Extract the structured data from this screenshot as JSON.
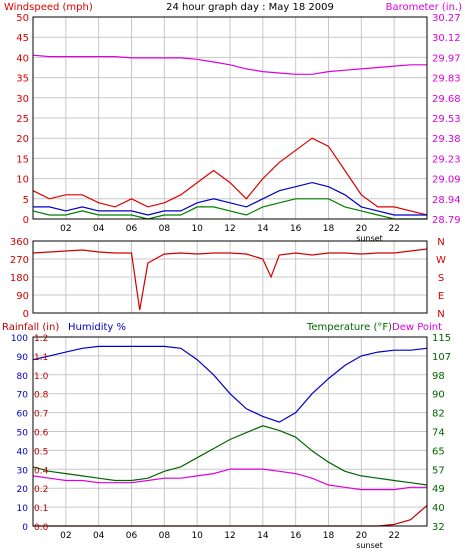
{
  "title": "24 hour graph day : May 18 2009",
  "colors": {
    "wind": "#e00000",
    "gust_avg": "#0000c8",
    "wind_green": "#008000",
    "baro": "#dd00dd",
    "dir": "#d00000",
    "rain": "#c00000",
    "hum": "#0000c8",
    "temp": "#006600",
    "dew": "#dd00dd",
    "grid": "#c8c8c8",
    "frame": "#000000"
  },
  "chart_data": [
    {
      "type": "line",
      "name": "wind-and-barometer",
      "left_axis_label": "Windspeed (mph)",
      "right_axis_label": "Barometer (in.)",
      "x_ticks": [
        "02",
        "04",
        "06",
        "08",
        "10",
        "12",
        "14",
        "16",
        "18",
        "20",
        "22"
      ],
      "x_annotation": "sunset",
      "ylim": [
        0,
        50
      ],
      "y_ticks": [
        "0",
        "5",
        "10",
        "15",
        "20",
        "25",
        "30",
        "35",
        "40",
        "45",
        "50"
      ],
      "y2lim": [
        28.79,
        30.27
      ],
      "y2_ticks": [
        "28.79",
        "28.94",
        "29.09",
        "29.23",
        "29.38",
        "29.53",
        "29.68",
        "29.83",
        "29.97",
        "30.12",
        "30.27"
      ],
      "hours": [
        0,
        1,
        2,
        3,
        4,
        5,
        6,
        7,
        8,
        9,
        10,
        11,
        12,
        13,
        14,
        15,
        16,
        17,
        18,
        19,
        20,
        21,
        22,
        23,
        24
      ],
      "series": [
        {
          "key": "wind_gust",
          "values": [
            7,
            5,
            6,
            6,
            4,
            3,
            5,
            3,
            4,
            6,
            9,
            12,
            9,
            5,
            10,
            14,
            17,
            20,
            18,
            12,
            6,
            3,
            3,
            2,
            1
          ]
        },
        {
          "key": "wind_avg",
          "values": [
            3,
            3,
            2,
            3,
            2,
            2,
            2,
            1,
            2,
            2,
            4,
            5,
            4,
            3,
            5,
            7,
            8,
            9,
            8,
            6,
            3,
            2,
            1,
            1,
            1
          ]
        },
        {
          "key": "wind_low",
          "values": [
            2,
            1,
            1,
            2,
            1,
            1,
            1,
            0,
            1,
            1,
            3,
            3,
            2,
            1,
            3,
            4,
            5,
            5,
            5,
            3,
            2,
            1,
            0,
            0,
            0
          ]
        },
        {
          "key": "barometer",
          "values": [
            29.99,
            29.98,
            29.98,
            29.98,
            29.98,
            29.98,
            29.97,
            29.97,
            29.97,
            29.97,
            29.96,
            29.94,
            29.92,
            29.89,
            29.87,
            29.86,
            29.85,
            29.85,
            29.87,
            29.88,
            29.89,
            29.9,
            29.91,
            29.92,
            29.92
          ]
        }
      ]
    },
    {
      "type": "line",
      "name": "wind-direction",
      "ylim": [
        0,
        360
      ],
      "y_ticks": [
        "0",
        "90",
        "180",
        "270",
        "360"
      ],
      "compass_labels": [
        "N",
        "W",
        "S",
        "E",
        "N"
      ],
      "hours": [
        0,
        1,
        2,
        3,
        4,
        5,
        6,
        6.5,
        7,
        8,
        9,
        10,
        11,
        12,
        13,
        14,
        14.5,
        15,
        16,
        17,
        18,
        19,
        20,
        21,
        22,
        23,
        24
      ],
      "series": [
        {
          "key": "direction",
          "values": [
            300,
            305,
            310,
            315,
            305,
            300,
            300,
            15,
            250,
            295,
            300,
            295,
            300,
            300,
            295,
            270,
            180,
            290,
            300,
            290,
            300,
            300,
            295,
            300,
            300,
            310,
            320
          ]
        }
      ]
    },
    {
      "type": "line",
      "name": "rain-humidity-temperature",
      "left_axis_label": "Rainfall (in)",
      "humidity_label": "Humidity %",
      "right_axis_label": "Temperature (°F)",
      "dew_label": "Dew Point",
      "x_ticks": [
        "02",
        "04",
        "06",
        "08",
        "10",
        "12",
        "14",
        "16",
        "18",
        "20",
        "22"
      ],
      "x_annotation": "sunset",
      "hum_lim": [
        0,
        100
      ],
      "hum_ticks": [
        "0",
        "10",
        "20",
        "30",
        "40",
        "50",
        "60",
        "70",
        "80",
        "90",
        "100"
      ],
      "rain_ticks": [
        "0.0",
        "0.1",
        "0.2",
        "0.4",
        "0.5",
        "0.6",
        "0.7",
        "0.8",
        "1.0",
        "1.1",
        "1.2"
      ],
      "temp_lim": [
        32,
        115
      ],
      "temp_ticks": [
        "32",
        "40",
        "49",
        "57",
        "65",
        "74",
        "82",
        "90",
        "98",
        "107",
        "115"
      ],
      "hours": [
        0,
        1,
        2,
        3,
        4,
        5,
        6,
        7,
        8,
        9,
        10,
        11,
        12,
        13,
        14,
        15,
        16,
        17,
        18,
        19,
        20,
        21,
        22,
        23,
        24
      ],
      "series": [
        {
          "key": "humidity",
          "values": [
            88,
            90,
            92,
            94,
            95,
            95,
            95,
            95,
            95,
            94,
            88,
            80,
            70,
            62,
            58,
            55,
            60,
            70,
            78,
            85,
            90,
            92,
            93,
            93,
            94
          ]
        },
        {
          "key": "temperature",
          "values": [
            58,
            56,
            55,
            54,
            53,
            52,
            52,
            53,
            56,
            58,
            62,
            66,
            70,
            73,
            76,
            74,
            71,
            65,
            60,
            56,
            54,
            53,
            52,
            51,
            50
          ]
        },
        {
          "key": "dew_point",
          "values": [
            54,
            53,
            52,
            52,
            51,
            51,
            51,
            52,
            53,
            53,
            54,
            55,
            57,
            57,
            57,
            56,
            55,
            53,
            50,
            49,
            48,
            48,
            48,
            49,
            49
          ]
        },
        {
          "key": "rainfall",
          "values": [
            0,
            0,
            0,
            0,
            0,
            0,
            0,
            0,
            0,
            0,
            0,
            0,
            0,
            0,
            0,
            0,
            0,
            0,
            0,
            0,
            0,
            0,
            0.01,
            0.04,
            0.13
          ]
        }
      ]
    }
  ]
}
